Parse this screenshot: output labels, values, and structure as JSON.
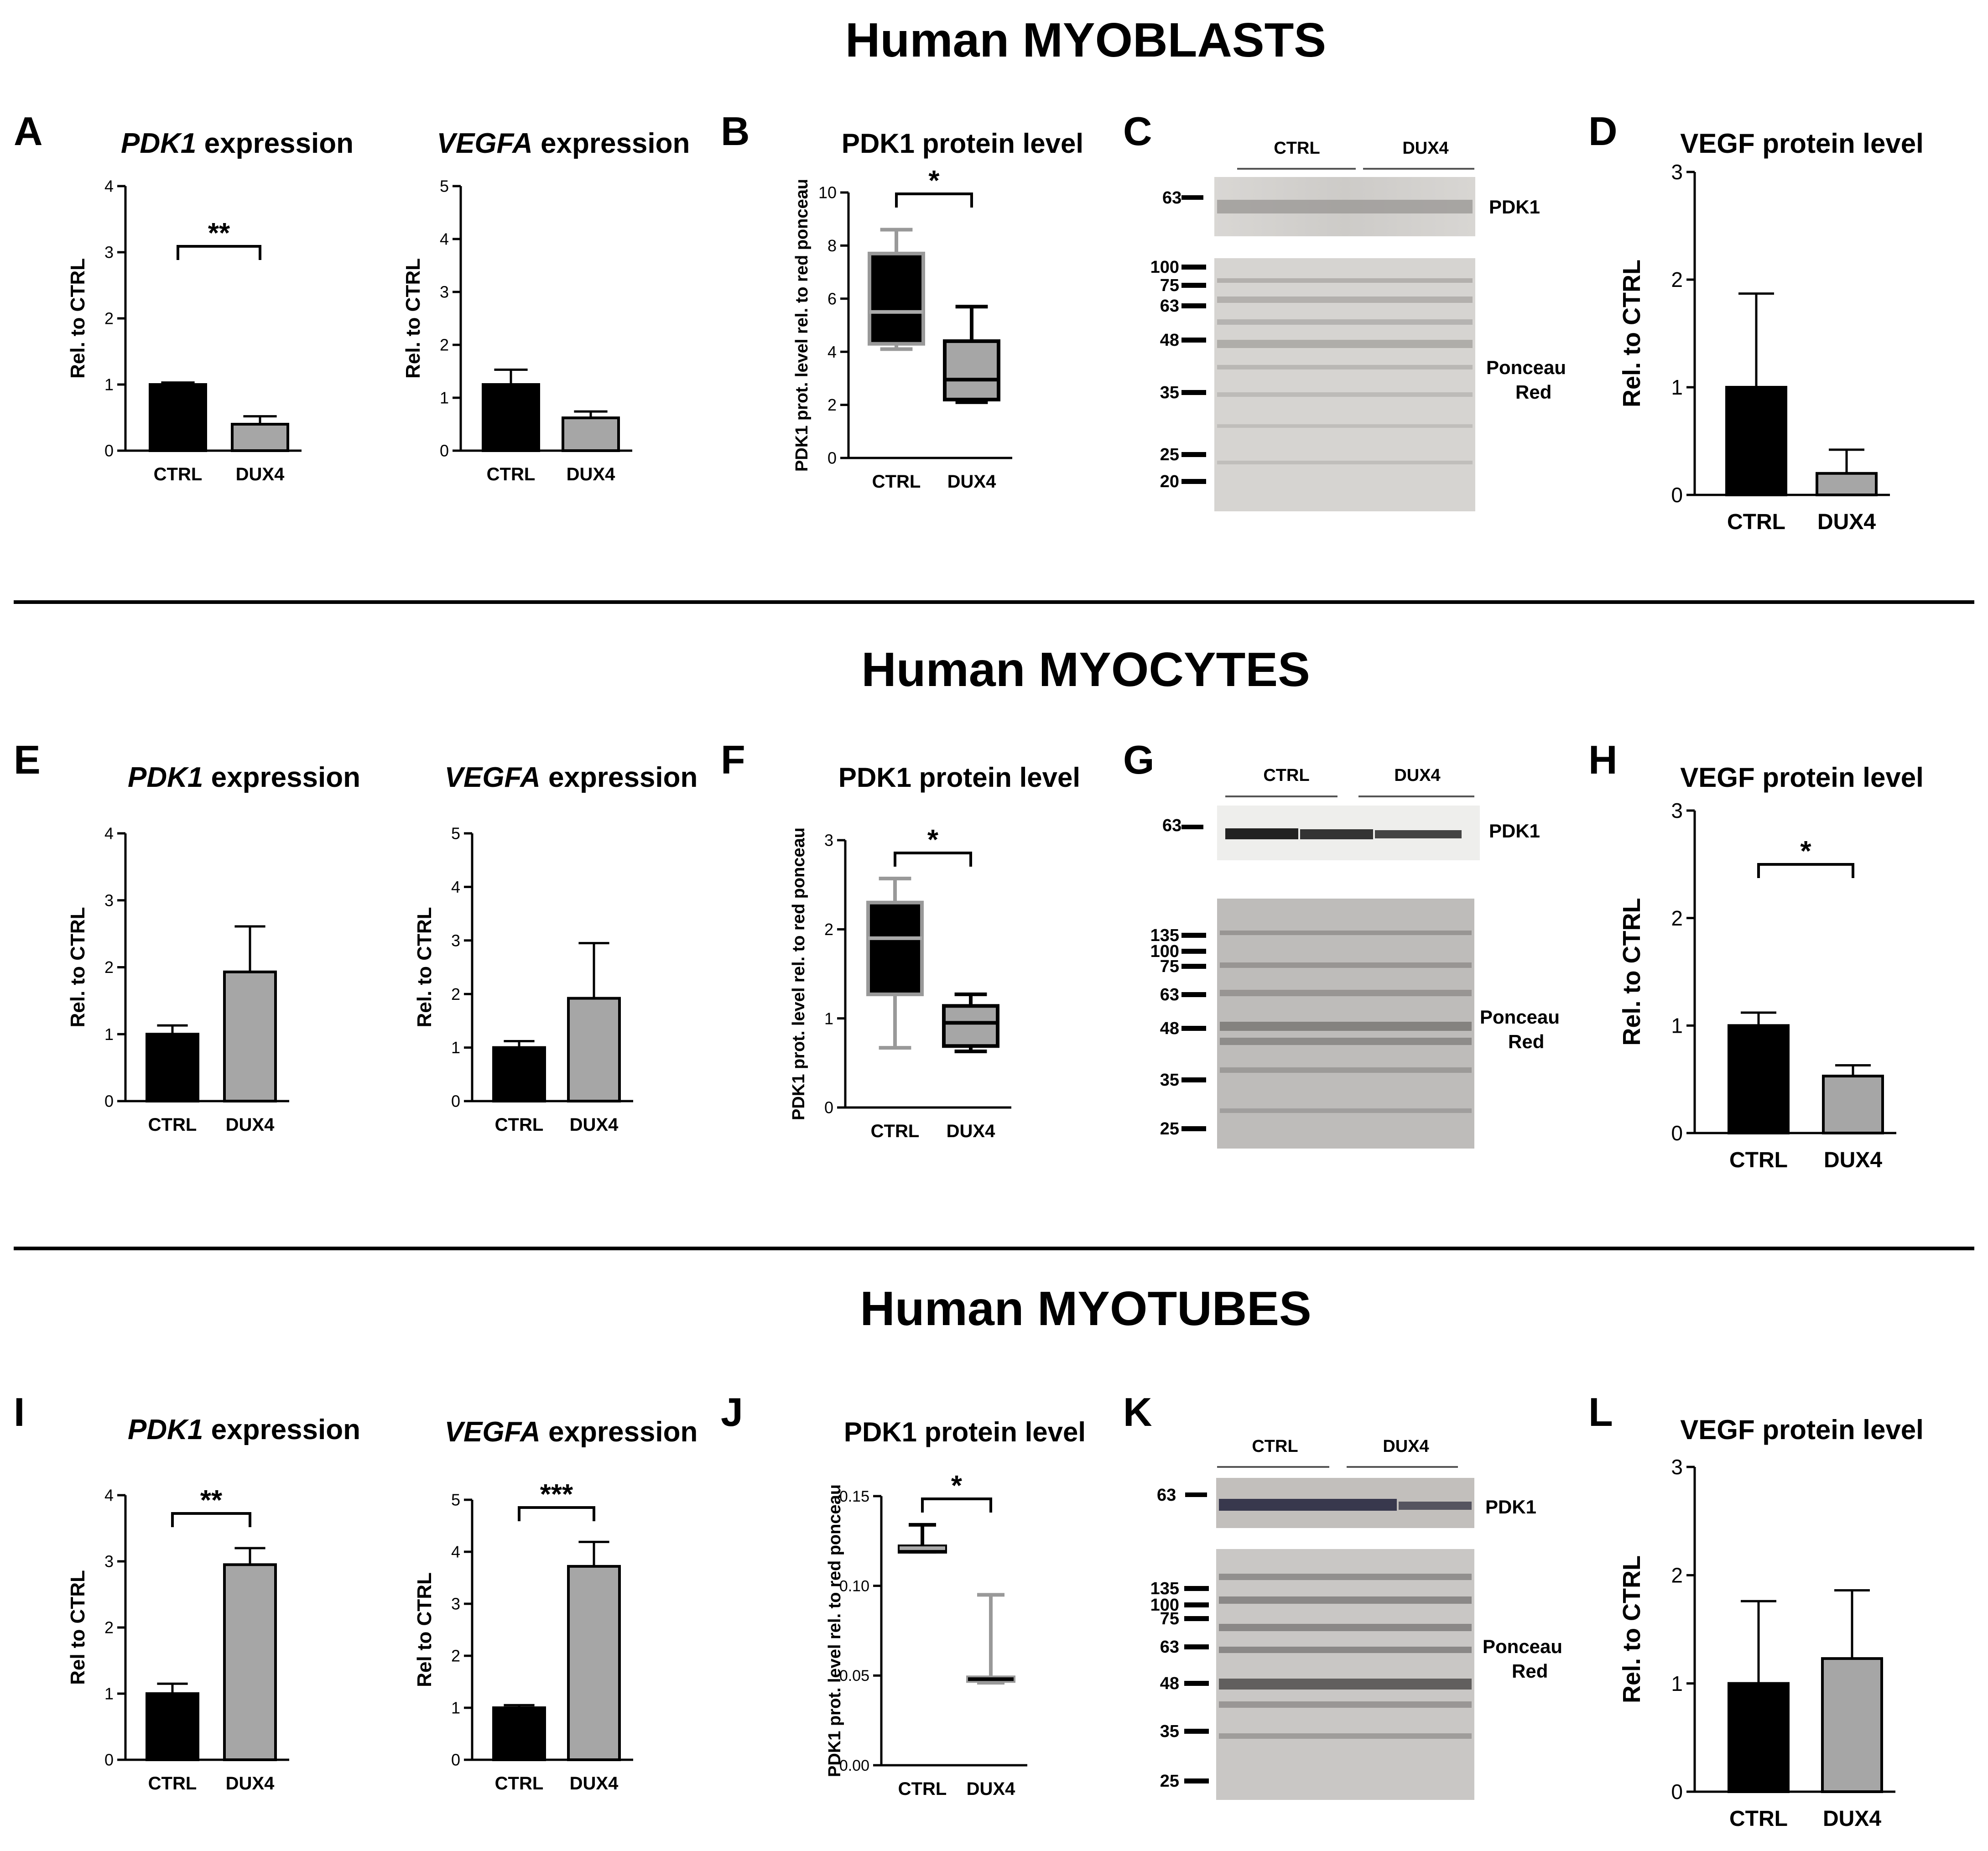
{
  "sections": [
    {
      "title": "Human MYOBLASTS"
    },
    {
      "title": "Human MYOCYTES"
    },
    {
      "title": "Human MYOTUBES"
    }
  ],
  "panels": {
    "A": "A",
    "B": "B",
    "C": "C",
    "D": "D",
    "E": "E",
    "F": "F",
    "G": "G",
    "H": "H",
    "I": "I",
    "J": "J",
    "K": "K",
    "L": "L"
  },
  "blots": {
    "C": {
      "ctrl": "CTRL",
      "dux4": "DUX4",
      "target": "PDK1",
      "stain1": "Ponceau",
      "stain2": "Red",
      "pdk1_marker": "63",
      "markers": [
        "100",
        "75",
        "63",
        "48",
        "35",
        "25",
        "20"
      ]
    },
    "G": {
      "ctrl": "CTRL",
      "dux4": "DUX4",
      "target": "PDK1",
      "stain1": "Ponceau",
      "stain2": "Red",
      "pdk1_marker": "63",
      "markers": [
        "135",
        "100",
        "75",
        "63",
        "48",
        "35",
        "25"
      ]
    },
    "K": {
      "ctrl": "CTRL",
      "dux4": "DUX4",
      "target": "PDK1",
      "stain1": "Ponceau",
      "stain2": "Red",
      "pdk1_marker": "63",
      "markers": [
        "135",
        "100",
        "75",
        "63",
        "48",
        "35",
        "25"
      ]
    }
  },
  "chart_data": [
    {
      "id": "A1",
      "type": "bar",
      "title_gene": "PDK1",
      "title_rest": " expression",
      "ylabel": "Rel. to CTRL",
      "categories": [
        "CTRL",
        "DUX4"
      ],
      "values": [
        1.0,
        0.4
      ],
      "errors": [
        0.03,
        0.12
      ],
      "ylim": [
        0,
        4
      ],
      "yticks": [
        "0",
        "1",
        "2",
        "3",
        "4"
      ],
      "colors": [
        "#000000",
        "#a6a6a6"
      ],
      "sig": "**"
    },
    {
      "id": "A2",
      "type": "bar",
      "title_gene": "VEGFA",
      "title_rest": " expression",
      "ylabel": "Rel. to CTRL",
      "categories": [
        "CTRL",
        "DUX4"
      ],
      "values": [
        1.25,
        0.62
      ],
      "errors": [
        0.28,
        0.12
      ],
      "ylim": [
        0,
        5
      ],
      "yticks": [
        "0",
        "1",
        "2",
        "3",
        "4",
        "5"
      ],
      "colors": [
        "#000000",
        "#a6a6a6"
      ],
      "sig": ""
    },
    {
      "id": "B",
      "type": "box",
      "title": "PDK1 protein level",
      "ylabel": "PDK1 prot. level rel. to red ponceau",
      "categories": [
        "CTRL",
        "DUX4"
      ],
      "boxes": [
        {
          "min": 4.1,
          "q1": 4.3,
          "median": 5.5,
          "q3": 7.7,
          "max": 8.6
        },
        {
          "min": 2.1,
          "q1": 2.2,
          "median": 2.95,
          "q3": 4.4,
          "max": 5.7
        }
      ],
      "fill": [
        "#000000",
        "#a6a6a6"
      ],
      "stroke": [
        "#999999",
        "#000000"
      ],
      "ylim": [
        0,
        10
      ],
      "yticks": [
        "0",
        "2",
        "4",
        "6",
        "8",
        "10"
      ],
      "sig": "*"
    },
    {
      "id": "D",
      "type": "bar",
      "title": "VEGF protein level",
      "ylabel": "Rel. to CTRL",
      "categories": [
        "CTRL",
        "DUX4"
      ],
      "values": [
        1.0,
        0.2
      ],
      "errors": [
        0.87,
        0.22
      ],
      "ylim": [
        0,
        3
      ],
      "yticks": [
        "0",
        "1",
        "2",
        "3"
      ],
      "colors": [
        "#000000",
        "#a6a6a6"
      ],
      "sig": ""
    },
    {
      "id": "E1",
      "type": "bar",
      "title_gene": "PDK1",
      "title_rest": " expression",
      "ylabel": "Rel. to CTRL",
      "categories": [
        "CTRL",
        "DUX4"
      ],
      "values": [
        1.0,
        1.93
      ],
      "errors": [
        0.13,
        0.68
      ],
      "ylim": [
        0,
        4
      ],
      "yticks": [
        "0",
        "1",
        "2",
        "3",
        "4"
      ],
      "colors": [
        "#000000",
        "#a6a6a6"
      ],
      "sig": ""
    },
    {
      "id": "E2",
      "type": "bar",
      "title_gene": "VEGFA",
      "title_rest": " expression",
      "ylabel": "Rel. to CTRL",
      "categories": [
        "CTRL",
        "DUX4"
      ],
      "values": [
        1.0,
        1.92
      ],
      "errors": [
        0.12,
        1.03
      ],
      "ylim": [
        0,
        5
      ],
      "yticks": [
        "0",
        "1",
        "2",
        "3",
        "4",
        "5"
      ],
      "colors": [
        "#000000",
        "#a6a6a6"
      ],
      "sig": ""
    },
    {
      "id": "F",
      "type": "box",
      "title": "PDK1 protein level",
      "ylabel": "PDK1 prot. level rel. to red ponceau",
      "categories": [
        "CTRL",
        "DUX4"
      ],
      "boxes": [
        {
          "min": 0.67,
          "q1": 1.27,
          "median": 1.9,
          "q3": 2.3,
          "max": 2.57
        },
        {
          "min": 0.63,
          "q1": 0.69,
          "median": 0.95,
          "q3": 1.14,
          "max": 1.27
        }
      ],
      "fill": [
        "#000000",
        "#a6a6a6"
      ],
      "stroke": [
        "#999999",
        "#000000"
      ],
      "ylim": [
        0,
        3
      ],
      "yticks": [
        "0",
        "1",
        "2",
        "3"
      ],
      "sig": "*"
    },
    {
      "id": "H",
      "type": "bar",
      "title": "VEGF protein level",
      "ylabel": "Rel. to CTRL",
      "categories": [
        "CTRL",
        "DUX4"
      ],
      "values": [
        1.0,
        0.53
      ],
      "errors": [
        0.12,
        0.1
      ],
      "ylim": [
        0,
        3
      ],
      "yticks": [
        "0",
        "1",
        "2",
        "3"
      ],
      "colors": [
        "#000000",
        "#a6a6a6"
      ],
      "sig": "*"
    },
    {
      "id": "I1",
      "type": "bar",
      "title_gene": "PDK1",
      "title_rest": " expression",
      "ylabel": "Rel to CTRL",
      "categories": [
        "CTRL",
        "DUX4"
      ],
      "values": [
        1.0,
        2.95
      ],
      "errors": [
        0.15,
        0.25
      ],
      "ylim": [
        0,
        4
      ],
      "yticks": [
        "0",
        "1",
        "2",
        "3",
        "4"
      ],
      "colors": [
        "#000000",
        "#a6a6a6"
      ],
      "sig": "**"
    },
    {
      "id": "I2",
      "type": "bar",
      "title_gene": "VEGFA",
      "title_rest": " expression",
      "ylabel": "Rel to CTRL",
      "categories": [
        "CTRL",
        "DUX4"
      ],
      "values": [
        1.0,
        3.72
      ],
      "errors": [
        0.05,
        0.47
      ],
      "ylim": [
        0,
        5
      ],
      "yticks": [
        "0",
        "1",
        "2",
        "3",
        "4",
        "5"
      ],
      "colors": [
        "#000000",
        "#a6a6a6"
      ],
      "sig": "***"
    },
    {
      "id": "J",
      "type": "box",
      "title": "PDK1 protein level",
      "ylabel": "PDK1 prot. level rel. to red ponceau",
      "categories": [
        "CTRL",
        "DUX4"
      ],
      "boxes": [
        {
          "min": 0.119,
          "q1": 0.119,
          "median": 0.121,
          "q3": 0.122,
          "max": 0.134
        },
        {
          "min": 0.046,
          "q1": 0.047,
          "median": 0.048,
          "q3": 0.049,
          "max": 0.095
        }
      ],
      "fill": [
        "#000000",
        "#a6a6a6"
      ],
      "stroke": [
        "#000000",
        "#999999"
      ],
      "ylim": [
        0,
        0.15
      ],
      "yticks": [
        "0.00",
        "0.05",
        "0.10",
        "0.15"
      ],
      "sig": "*"
    },
    {
      "id": "L",
      "type": "bar",
      "title": "VEGF protein level",
      "ylabel": "Rel. to CTRL",
      "categories": [
        "CTRL",
        "DUX4"
      ],
      "values": [
        1.0,
        1.23
      ],
      "errors": [
        0.76,
        0.63
      ],
      "ylim": [
        0,
        3
      ],
      "yticks": [
        "0",
        "1",
        "2",
        "3"
      ],
      "colors": [
        "#000000",
        "#a6a6a6"
      ],
      "sig": ""
    }
  ]
}
